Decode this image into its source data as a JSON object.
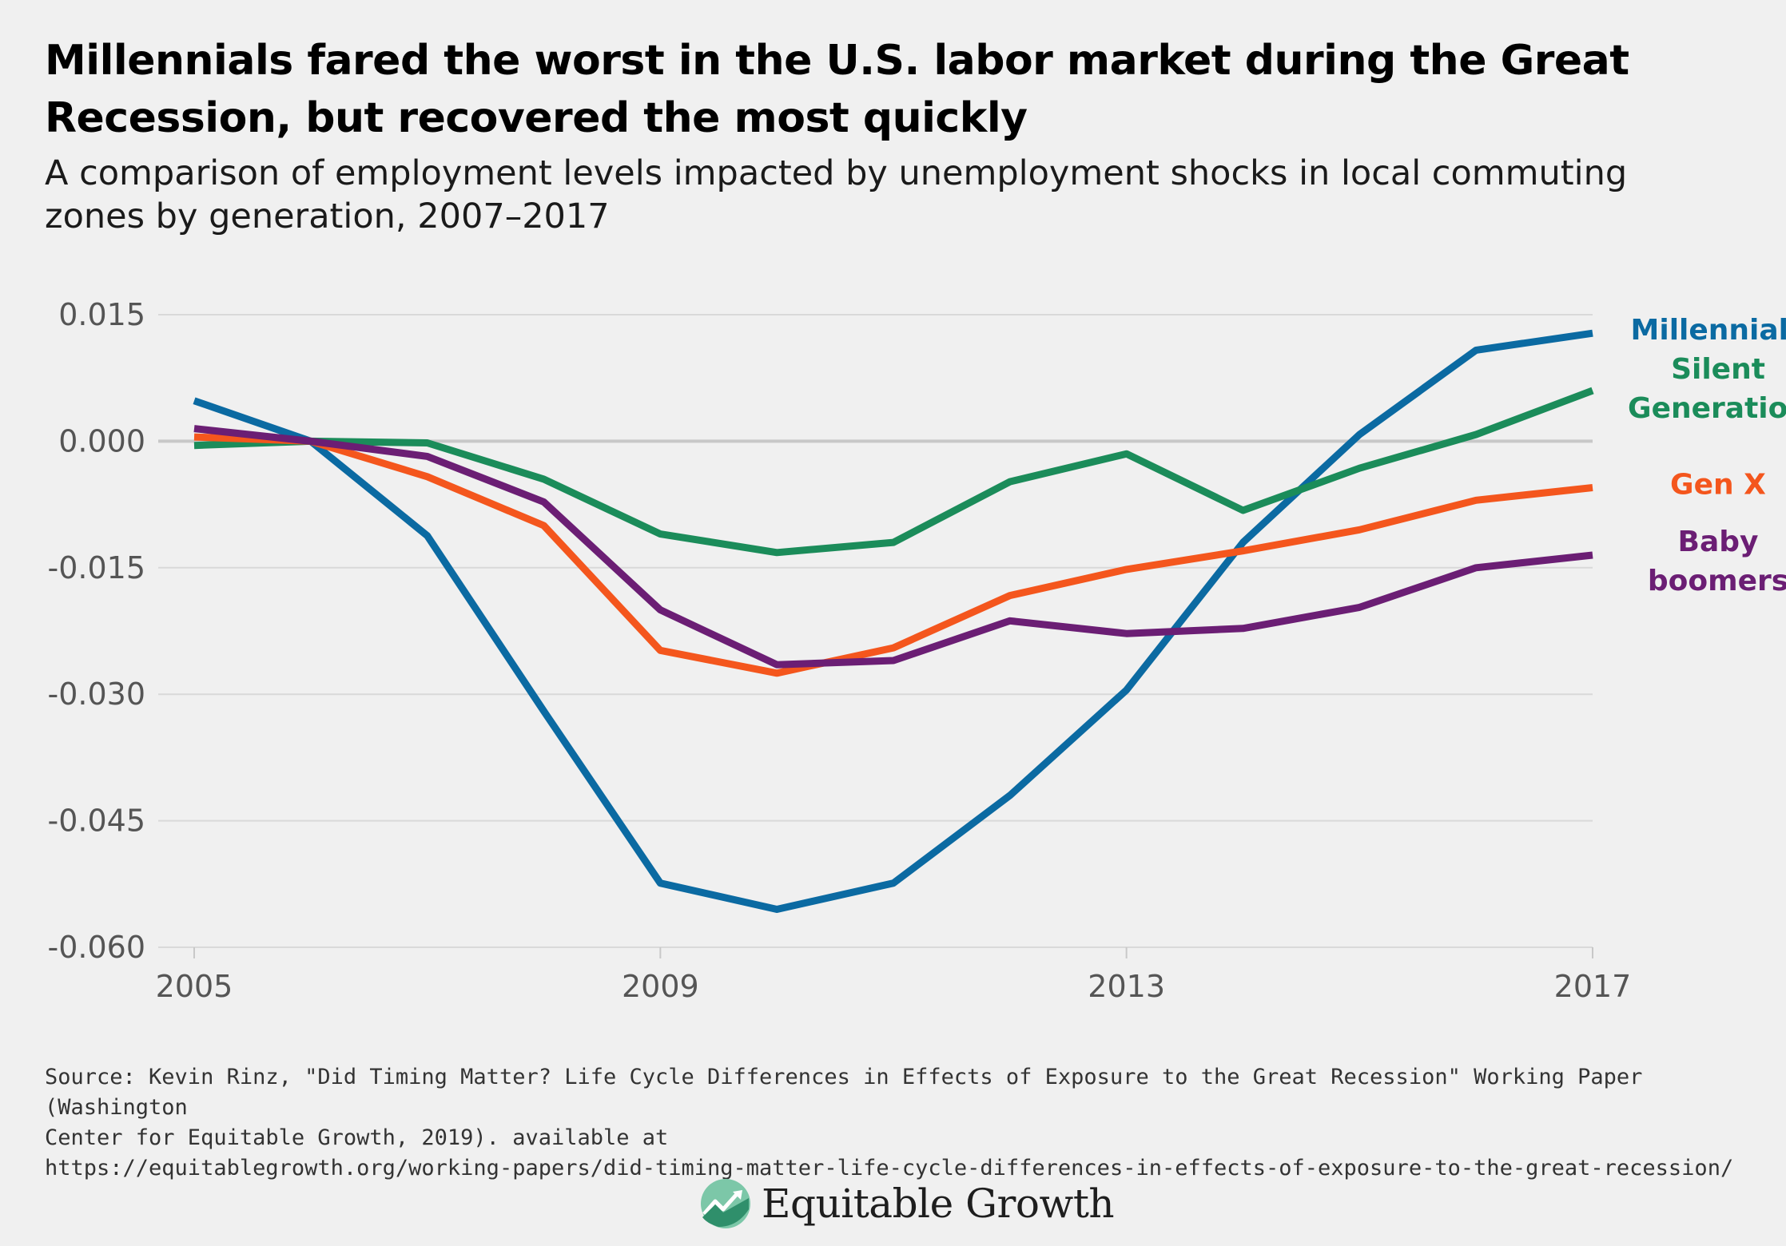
{
  "title": "Millennials fared the worst in the U.S. labor market during the Great Recession, but recovered the most quickly",
  "subtitle": "A comparison of employment levels impacted by unemployment shocks in local commuting zones by generation, 2007–2017",
  "source_lines": [
    "Source: Kevin Rinz, \"Did Timing Matter? Life Cycle Differences in Effects of Exposure to the Great Recession\" Working Paper (Washington",
    "Center for Equitable Growth, 2019). available at",
    "https://equitablegrowth.org/working-papers/did-timing-matter-life-cycle-differences-in-effects-of-exposure-to-the-great-recession/"
  ],
  "logo_text": "Equitable Growth",
  "chart_data": {
    "type": "line",
    "x": [
      2005,
      2006,
      2007,
      2008,
      2009,
      2010,
      2011,
      2012,
      2013,
      2014,
      2015,
      2016,
      2017
    ],
    "x_ticks": [
      "2005",
      "2009",
      "2013",
      "2017"
    ],
    "y_ticks": [
      "0.015",
      "0.000",
      "-0.015",
      "-0.030",
      "-0.045",
      "-0.060"
    ],
    "xlim": [
      2005,
      2017
    ],
    "ylim": [
      -0.06,
      0.015
    ],
    "grid": "horizontal",
    "series": [
      {
        "name": "Millennials",
        "color": "#0b6aa2",
        "values": [
          0.0048,
          0.0,
          -0.0112,
          -0.032,
          -0.0524,
          -0.0555,
          -0.0524,
          -0.042,
          -0.0295,
          -0.012,
          0.0008,
          0.0108,
          0.0128
        ]
      },
      {
        "name": "Silent Generation",
        "color": "#1b8c5a",
        "values": [
          -0.0005,
          0.0,
          -0.0002,
          -0.0045,
          -0.011,
          -0.0132,
          -0.012,
          -0.0048,
          -0.0015,
          -0.0082,
          -0.0032,
          0.0008,
          0.006
        ]
      },
      {
        "name": "Gen X",
        "color": "#f4561d",
        "values": [
          0.0005,
          0.0,
          -0.0042,
          -0.01,
          -0.0248,
          -0.0275,
          -0.0245,
          -0.0183,
          -0.0152,
          -0.013,
          -0.0105,
          -0.007,
          -0.0055
        ]
      },
      {
        "name": "Baby boomers",
        "color": "#6b1e74",
        "values": [
          0.0015,
          0.0,
          -0.0018,
          -0.0072,
          -0.02,
          -0.0265,
          -0.026,
          -0.0213,
          -0.0228,
          -0.0222,
          -0.0197,
          -0.015,
          -0.0135
        ]
      }
    ],
    "labels": [
      {
        "lines": [
          "Millennials"
        ],
        "color": "#0b6aa2"
      },
      {
        "lines": [
          "Silent",
          "Generation"
        ],
        "color": "#1b8c5a"
      },
      {
        "lines": [
          "Gen X"
        ],
        "color": "#f4561d"
      },
      {
        "lines": [
          "Baby",
          "boomers"
        ],
        "color": "#6b1e74"
      }
    ]
  }
}
